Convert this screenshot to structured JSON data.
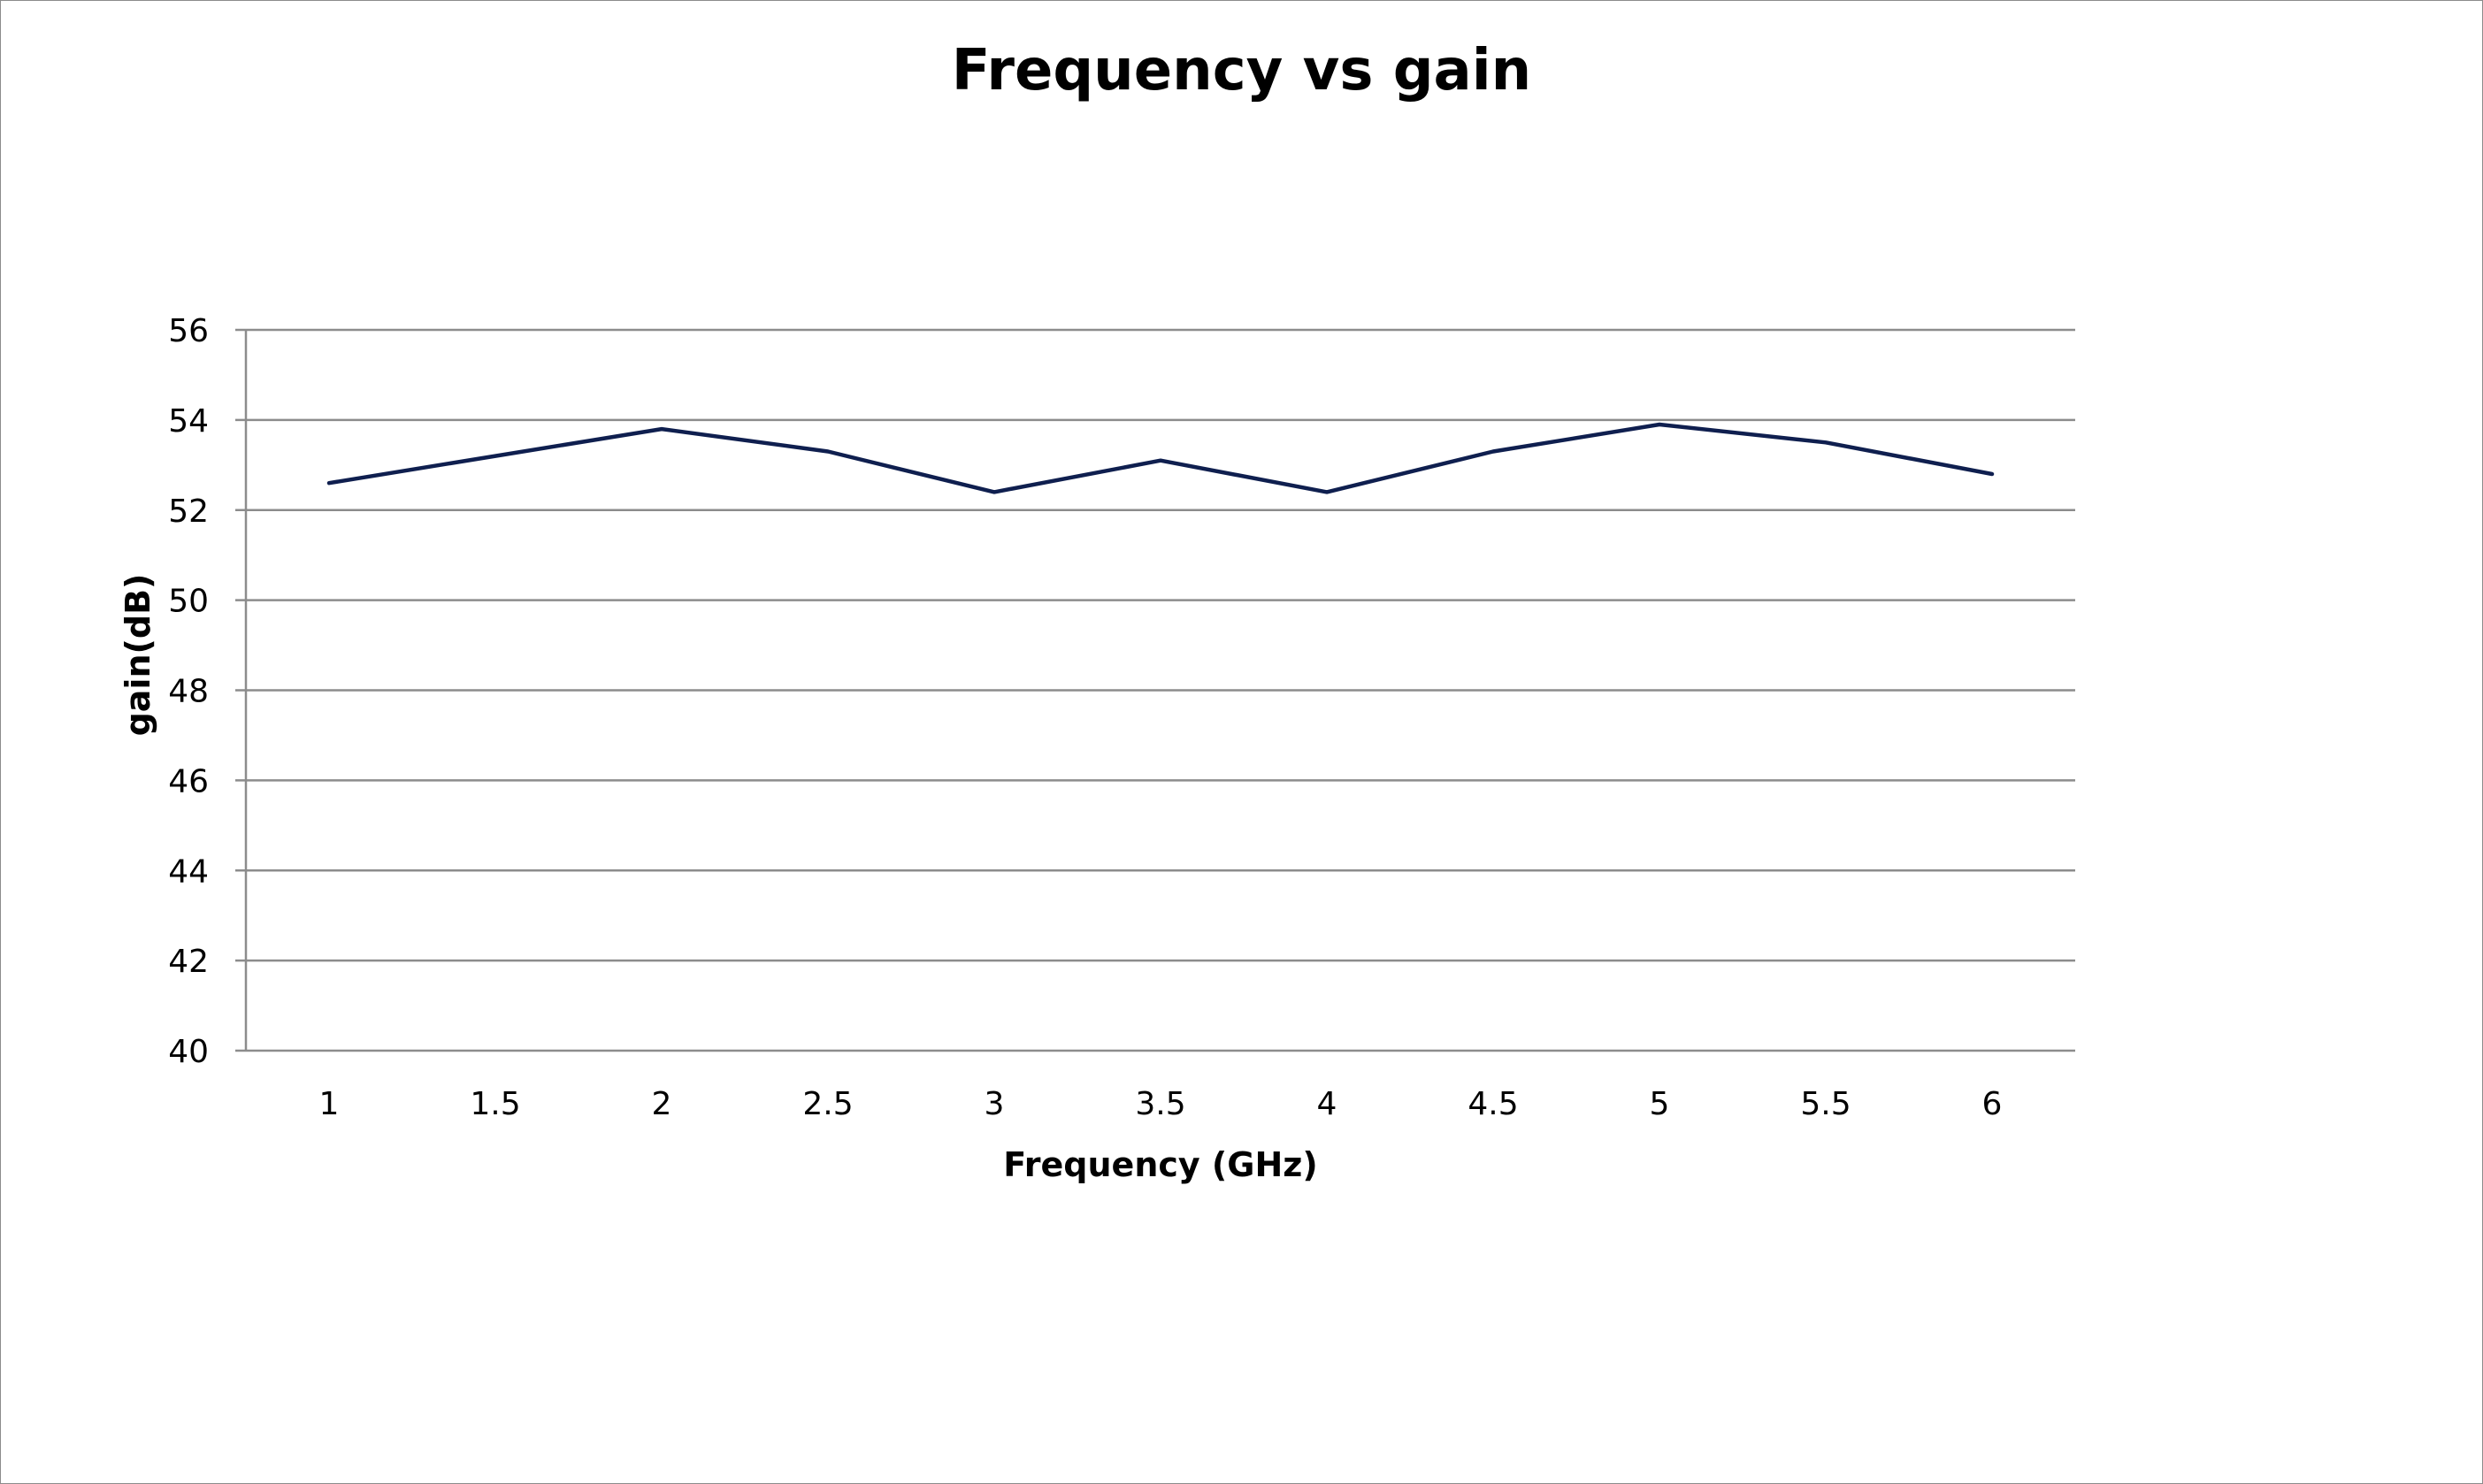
{
  "chart_data": {
    "type": "line",
    "title": "Frequency vs gain",
    "xlabel": "Frequency (GHz)",
    "ylabel": "gain(dB)",
    "categories": [
      "1",
      "1.5",
      "2",
      "2.5",
      "3",
      "3.5",
      "4",
      "4.5",
      "5",
      "5.5",
      "6"
    ],
    "x": [
      1,
      1.5,
      2,
      2.5,
      3,
      3.5,
      4,
      4.5,
      5,
      5.5,
      6
    ],
    "series": [
      {
        "values": [
          52.6,
          53.2,
          53.8,
          53.3,
          52.4,
          53.1,
          52.4,
          53.3,
          53.9,
          53.5,
          52.8
        ],
        "color": "#0f1f4f"
      }
    ],
    "ylim": [
      40,
      56
    ],
    "yticks": [
      40,
      42,
      44,
      46,
      48,
      50,
      52,
      54,
      56
    ],
    "grid": true,
    "legend": "none"
  }
}
